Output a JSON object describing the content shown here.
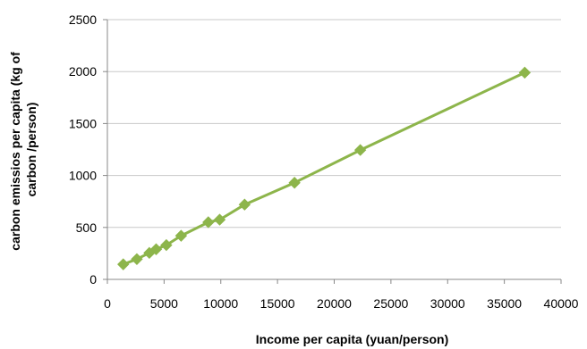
{
  "chart_data": {
    "type": "line",
    "title": "",
    "xlabel": "Income per capita (yuan/person)",
    "ylabel_lines": [
      "carbon emissios per capita (kg of",
      "carbon /person)"
    ],
    "xlim": [
      0,
      40000
    ],
    "ylim": [
      0,
      2500
    ],
    "xticks": [
      0,
      5000,
      10000,
      15000,
      20000,
      25000,
      30000,
      35000,
      40000
    ],
    "yticks": [
      0,
      500,
      1000,
      1500,
      2000,
      2500
    ],
    "grid": "horizontal",
    "legend": "none",
    "series": [
      {
        "color": "#8db54b",
        "marker": "diamond",
        "points": [
          [
            1400,
            145
          ],
          [
            2600,
            195
          ],
          [
            3700,
            255
          ],
          [
            4300,
            290
          ],
          [
            5200,
            330
          ],
          [
            6500,
            420
          ],
          [
            8900,
            550
          ],
          [
            9900,
            575
          ],
          [
            12100,
            720
          ],
          [
            16500,
            930
          ],
          [
            22300,
            1245
          ],
          [
            36800,
            1990
          ]
        ]
      }
    ]
  }
}
